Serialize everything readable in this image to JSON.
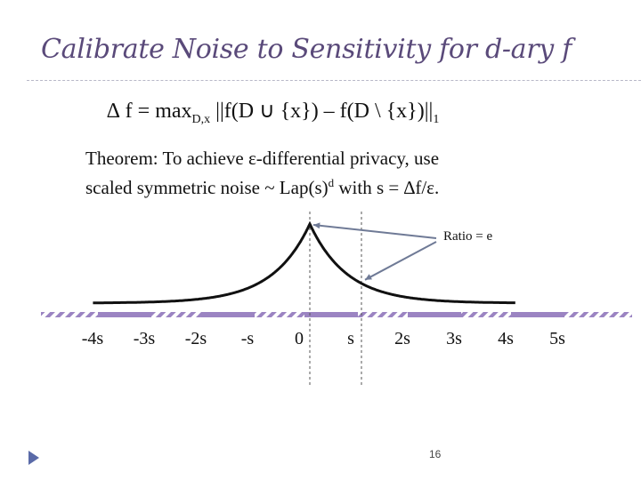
{
  "slide": {
    "title": "Calibrate Noise to Sensitivity for d-ary f",
    "formula": {
      "lhs": "∆ f = max",
      "subscript": "D,x",
      "rhs": " ||f(D ∪ {x}) – f(D \\ {x})||",
      "norm_subscript": "1"
    },
    "theorem": {
      "line1": "Theorem: To achieve ε-differential privacy, use",
      "line2_before": "scaled symmetric noise ~ Lap(s)",
      "line2_sup": "d",
      "line2_after": " with s = ∆f/ε."
    },
    "ratio_label": "Ratio = e",
    "page_number": "16"
  },
  "chart_data": {
    "type": "line",
    "function": "laplace density, peak at 0, shifted copy at s",
    "x_tick_labels": [
      "-4s",
      "-3s",
      "-2s",
      "-s",
      "0",
      "s",
      "2s",
      "3s",
      "4s",
      "5s"
    ],
    "x_ticks": [
      -4,
      -3,
      -2,
      -1,
      0,
      1,
      2,
      3,
      4,
      5
    ],
    "xlim": [
      -5,
      6
    ],
    "dashed_vertical_lines_at": [
      0,
      1
    ],
    "colors": {
      "curve": "#111111",
      "axis_bar": "#9b84c2",
      "arrow": "#6f7a96",
      "marker": "#5a6aa8"
    }
  }
}
